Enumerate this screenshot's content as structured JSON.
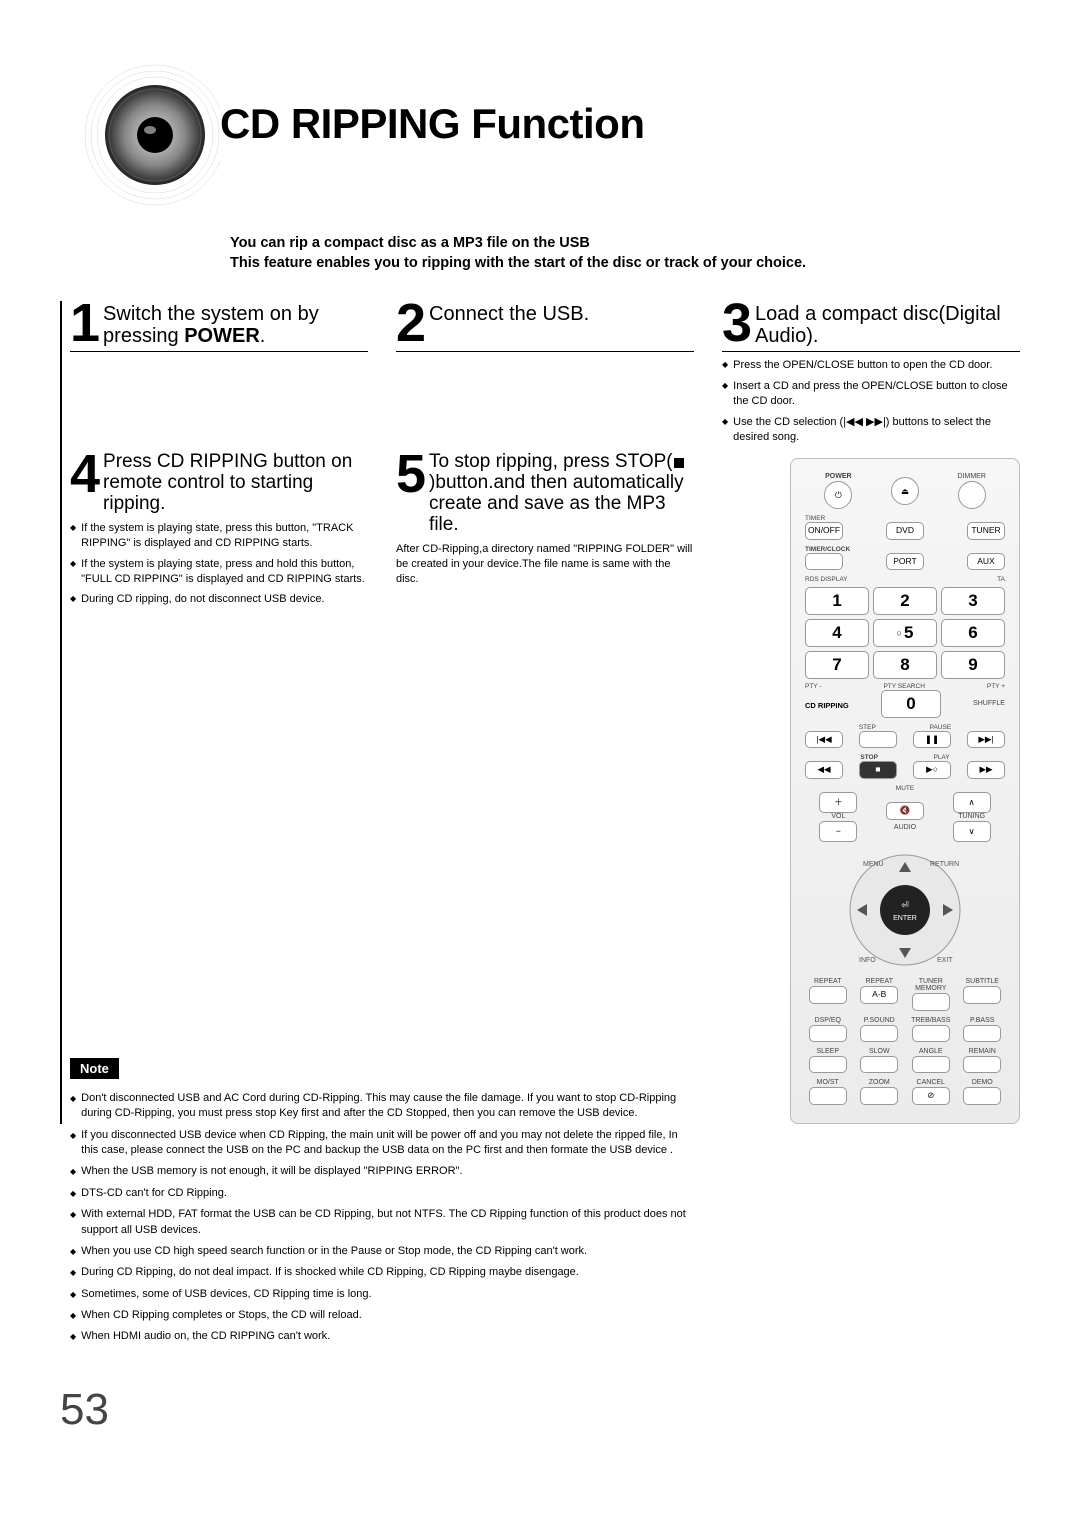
{
  "page": {
    "title": "CD RIPPING Function",
    "intro_line1": "You can rip a compact disc as a MP3 file on the USB",
    "intro_line2": "This feature enables you to ripping with the start of the disc or track of your choice.",
    "page_number": "53"
  },
  "steps": {
    "s1": {
      "num": "1",
      "title_a": "Switch the system on by pressing ",
      "title_b": "POWER",
      "title_c": "."
    },
    "s2": {
      "num": "2",
      "title_a": "Connect the USB."
    },
    "s3": {
      "num": "3",
      "title_a": "Load a compact disc(Digital Audio)."
    },
    "s3_bullets": [
      "Press the OPEN/CLOSE button to open the CD door.",
      "Insert a CD and press the OPEN/CLOSE button to close the CD door.",
      "Use the CD selection (|◀◀ ▶▶|) buttons to select the desired song."
    ],
    "s4": {
      "num": "4",
      "title_a": "Press CD RIPPING button on remote control to starting ripping."
    },
    "s4_bullets": [
      "If the system is playing state, press this button, \"TRACK RIPPING\" is displayed and CD RIPPING starts.",
      "If the system is playing state, press and hold this button, \"FULL CD RIPPING\" is displayed and CD RIPPING starts.",
      "During CD ripping, do not disconnect USB device."
    ],
    "s5": {
      "num": "5",
      "title_a": "To stop ripping, press STOP(■)button.and then automatically create and save as the MP3 file."
    },
    "s5_body": "After CD-Ripping,a directory named \"RIPPING FOLDER\" will be created in your device.The file name is same with the disc."
  },
  "note": {
    "label": "Note",
    "bullets": [
      "Don't disconnected USB and AC Cord during CD-Ripping. This may cause the file damage. If you want to stop CD-Ripping during CD-Ripping, you must press stop Key first and after the CD Stopped, then you can remove the USB device.",
      "If you disconnected USB device when CD Ripping, the main unit will be power off and you may not delete the ripped file, In this case, please connect the USB on the PC and backup the USB data on the PC first and then formate the USB device .",
      "When the USB memory is not enough, it will be displayed \"RIPPING ERROR\".",
      "DTS-CD can't for CD Ripping.",
      "With external HDD, FAT format the USB can be CD Ripping, but not NTFS. The CD Ripping function of this product does not support all USB devices.",
      "When you use CD high speed search function or in the Pause or Stop mode, the CD Ripping can't work.",
      "During CD Ripping, do not deal impact. If is shocked while CD Ripping, CD Ripping maybe disengage.",
      "Sometimes, some of USB devices, CD Ripping time is long.",
      "When CD Ripping completes or Stops, the CD will reload.",
      "When HDMI audio on, the CD RIPPING can't work."
    ]
  },
  "remote": {
    "power": "POWER",
    "dimmer": "DIMMER",
    "timer": "TIMER",
    "onoff": "ON/OFF",
    "dvd": "DVD",
    "tuner": "TUNER",
    "timerclock": "TIMER/CLOCK",
    "port": "PORT",
    "aux": "AUX",
    "rds": "RDS DISPLAY",
    "ta": "TA",
    "pty_minus": "PTY -",
    "pty_search": "PTY SEARCH",
    "pty_plus": "PTY +",
    "cd_ripping": "CD RIPPING",
    "shuffle": "SHUFFLE",
    "step": "STEP",
    "pause": "PAUSE",
    "stop": "STOP",
    "play": "PLAY",
    "mute": "MUTE",
    "vol": "VOL",
    "audio": "AUDIO",
    "tuning": "TUNING",
    "menu": "MENU",
    "return": "RETURN",
    "info": "INFO",
    "exit": "EXIT",
    "enter": "ENTER",
    "row_labels": [
      "REPEAT",
      "REPEAT",
      "TUNER MEMORY",
      "SUBTITLE"
    ],
    "ab": "A-B",
    "row2": [
      "DSP/EQ",
      "P.SOUND",
      "TREB/BASS",
      "P.BASS"
    ],
    "row3": [
      "SLEEP",
      "SLOW",
      "ANGLE",
      "REMAIN"
    ],
    "row4": [
      "MO/ST",
      "ZOOM",
      "CANCEL",
      "DEMO"
    ],
    "nums": [
      "1",
      "2",
      "3",
      "4",
      "5",
      "6",
      "7",
      "8",
      "9",
      "0"
    ]
  },
  "colors": {
    "text": "#000000",
    "bg": "#ffffff",
    "remote_border": "#bbbbbb",
    "remote_bg_top": "#f6f6f6",
    "remote_bg_bot": "#ebebeb",
    "btn_border": "#999999",
    "page_num": "#444444"
  }
}
